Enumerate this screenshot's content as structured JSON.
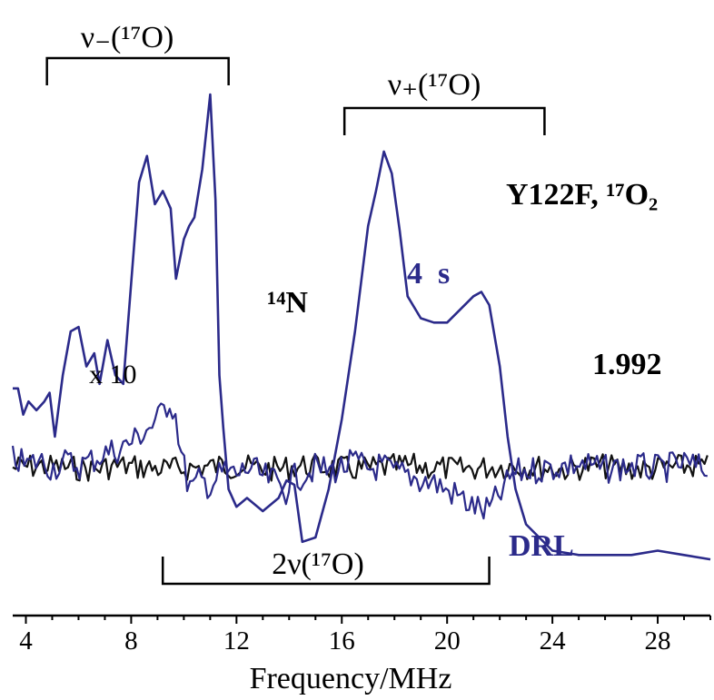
{
  "colors": {
    "spectrum": "#2b2a8a",
    "reference": "#111111",
    "ink": "#000000"
  },
  "chart_data": {
    "type": "line",
    "title": "",
    "xlabel": "Frequency/MHz",
    "ylabel": "",
    "xlim": [
      3.5,
      30
    ],
    "xticks": [
      4,
      8,
      12,
      16,
      20,
      24,
      28
    ],
    "grid": false,
    "annotations": {
      "sample": "Y122F, ¹⁷O₂",
      "time": "4  s",
      "g_value": "1.992",
      "n14": "¹⁴N",
      "scale": "x 10",
      "drl": "DRL",
      "nu_minus": "ν₋(¹⁷O)",
      "nu_plus": "ν₊(¹⁷O)",
      "two_nu": "2ν(¹⁷O)"
    },
    "brackets": [
      {
        "label_key": "nu_minus",
        "from": 4.8,
        "to": 11.7,
        "ticks": "down"
      },
      {
        "label_key": "nu_plus",
        "from": 16.1,
        "to": 23.7,
        "ticks": "down"
      },
      {
        "label_key": "two_nu",
        "from": 9.2,
        "to": 21.6,
        "ticks": "up"
      }
    ],
    "series": [
      {
        "key": "top",
        "color_key": "spectrum",
        "x": [
          3.5,
          3.7,
          3.9,
          4.1,
          4.4,
          4.7,
          4.9,
          5.1,
          5.4,
          5.7,
          6.0,
          6.3,
          6.6,
          6.8,
          7.1,
          7.4,
          7.7,
          8.0,
          8.3,
          8.6,
          8.9,
          9.2,
          9.5,
          9.7,
          10.0,
          10.2,
          10.4,
          10.7,
          11.0,
          11.2,
          11.35,
          11.5,
          11.7,
          12.0,
          12.4,
          13.0,
          13.6,
          13.9,
          14.2,
          14.5,
          15.0,
          15.5,
          16.0,
          16.5,
          17.0,
          17.3,
          17.6,
          17.9,
          18.2,
          18.5,
          19.0,
          19.5,
          20.0,
          20.5,
          21.0,
          21.3,
          21.6,
          22.0,
          22.3,
          22.6,
          23.0,
          23.5,
          24.0,
          25.0,
          26.0,
          27.0,
          28.0,
          29.0,
          30.0
        ],
        "y": [
          0.75,
          0.75,
          0.69,
          0.72,
          0.7,
          0.72,
          0.74,
          0.64,
          0.78,
          0.88,
          0.89,
          0.8,
          0.83,
          0.76,
          0.86,
          0.78,
          0.76,
          0.99,
          1.22,
          1.28,
          1.17,
          1.2,
          1.16,
          1.0,
          1.09,
          1.12,
          1.14,
          1.25,
          1.42,
          1.18,
          0.78,
          0.66,
          0.52,
          0.48,
          0.5,
          0.47,
          0.5,
          0.54,
          0.53,
          0.4,
          0.41,
          0.52,
          0.68,
          0.88,
          1.12,
          1.2,
          1.29,
          1.24,
          1.11,
          0.96,
          0.91,
          0.9,
          0.9,
          0.93,
          0.96,
          0.97,
          0.94,
          0.8,
          0.64,
          0.52,
          0.44,
          0.41,
          0.38,
          0.37,
          0.37,
          0.37,
          0.38,
          0.37,
          0.36
        ]
      },
      {
        "key": "drl",
        "color_key": "spectrum",
        "x": [
          3.5,
          4.0,
          4.5,
          5.0,
          5.5,
          6.0,
          6.5,
          7.0,
          7.5,
          8.0,
          8.5,
          9.0,
          9.3,
          9.5,
          9.7,
          9.9,
          10.1,
          10.3,
          10.6,
          11.0,
          11.5,
          12.0,
          12.5,
          13.0,
          13.5,
          13.9,
          14.0,
          14.5,
          15.0,
          15.5,
          16.0,
          16.5,
          17.0,
          17.5,
          18.0,
          18.5,
          19.0,
          19.5,
          20.0,
          20.5,
          20.8,
          21.1,
          21.4,
          21.6,
          21.9,
          22.2,
          22.5,
          23.0,
          24.0,
          25.0,
          26.0,
          27.0,
          28.0,
          29.0,
          30.0
        ],
        "y": [
          0.06,
          0.01,
          0.04,
          0.0,
          0.03,
          0.01,
          0.04,
          0.08,
          0.1,
          0.14,
          0.2,
          0.26,
          0.34,
          0.37,
          0.28,
          0.08,
          -0.06,
          -0.12,
          -0.07,
          -0.1,
          -0.02,
          -0.04,
          0.0,
          -0.05,
          -0.08,
          -0.13,
          -0.07,
          -0.04,
          0.0,
          -0.02,
          0.0,
          0.03,
          -0.01,
          0.01,
          -0.03,
          -0.04,
          -0.07,
          -0.08,
          -0.13,
          -0.16,
          -0.2,
          -0.22,
          -0.24,
          -0.23,
          -0.17,
          -0.11,
          -0.03,
          -0.02,
          0.0,
          0.02,
          -0.01,
          0.01,
          -0.01,
          0.02,
          -0.02
        ]
      },
      {
        "key": "ref",
        "color_key": "reference",
        "x": [
          3.5,
          4.5,
          5.5,
          6.5,
          7.5,
          8.5,
          9.5,
          10.5,
          11.5,
          12.5,
          13.5,
          14.5,
          15.5,
          16.5,
          17.5,
          18.5,
          19.5,
          20.5,
          21.5,
          22.5,
          23.5,
          24.5,
          25.5,
          26.5,
          27.5,
          28.5,
          29.5,
          30.0
        ],
        "y": [
          0.0,
          0.01,
          0.0,
          -0.01,
          0.01,
          0.0,
          -0.01,
          0.0,
          0.01,
          0.0,
          -0.01,
          0.01,
          0.0,
          -0.01,
          0.0,
          0.01,
          0.0,
          -0.01,
          0.0,
          0.01,
          0.0,
          -0.01,
          0.01,
          0.0,
          -0.01,
          0.0,
          0.01,
          0.0
        ]
      }
    ]
  }
}
